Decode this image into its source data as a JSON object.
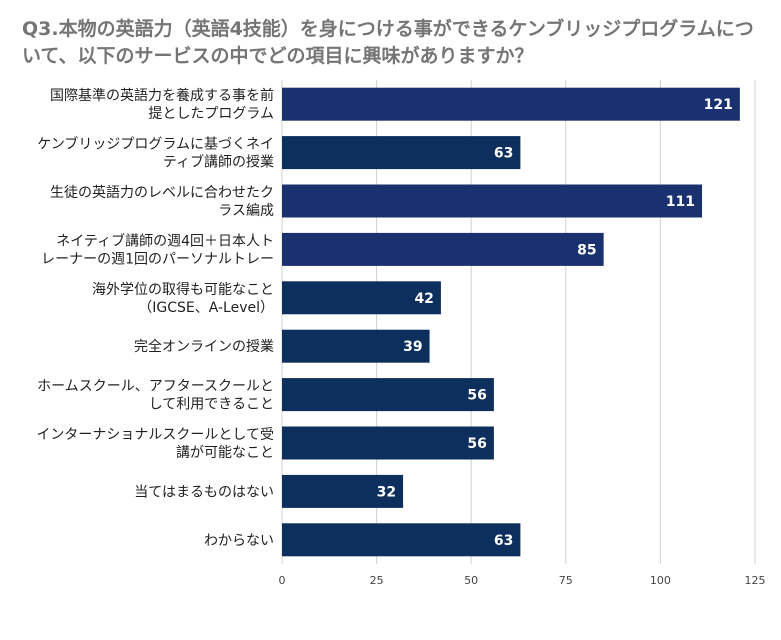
{
  "chart_data": {
    "type": "bar",
    "orientation": "horizontal",
    "title": "Q3.本物の英語力（英語4技能）を身につける事ができるケンブリッジプログラムについて、以下のサービスの中でどの項目に興味がありますか？",
    "categories": [
      [
        "国際基準の英語力を養成する事を前",
        "提としたプログラム"
      ],
      [
        "ケンブリッジプログラムに基づくネイ",
        "ティブ講師の授業"
      ],
      [
        "生徒の英語力のレベルに合わせたク",
        "ラス編成"
      ],
      [
        "ネイティブ講師の週4回＋日本人ト",
        "レーナーの週1回のパーソナルトレー"
      ],
      [
        "海外学位の取得も可能なこと",
        "（IGCSE、A-Level）"
      ],
      [
        "完全オンラインの授業"
      ],
      [
        "ホームスクール、アフタースクールと",
        "して利用できること"
      ],
      [
        "インターナショナルスクールとして受",
        "講が可能なこと"
      ],
      [
        "当てはまるものはない"
      ],
      [
        "わからない"
      ]
    ],
    "values": [
      121,
      63,
      111,
      85,
      42,
      39,
      56,
      56,
      32,
      63
    ],
    "xlim": [
      0,
      125
    ],
    "xticks": [
      0,
      25,
      50,
      75,
      100,
      125
    ],
    "xlabel": "",
    "ylabel": "",
    "grid": true,
    "legend": "none",
    "colors": {
      "highlight": "#1a3170",
      "default": "#0d2f5e",
      "grid": "#d0d0d0",
      "title": "#757575"
    },
    "highlighted_indices": [
      0,
      2,
      3
    ]
  }
}
